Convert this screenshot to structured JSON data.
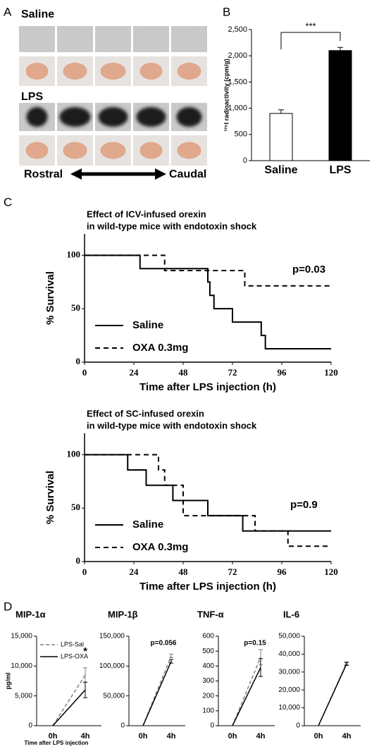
{
  "panel_a": {
    "label": "A",
    "groups": [
      "Saline",
      "LPS"
    ],
    "axis": [
      "Rostral",
      "Caudal"
    ]
  },
  "chart_data": [
    {
      "type": "bar",
      "panel": "B",
      "categories": [
        "Saline",
        "LPS"
      ],
      "values": [
        900,
        2100
      ],
      "errors": [
        70,
        60
      ],
      "colors": [
        "#ffffff",
        "#000000"
      ],
      "ylabel": "¹²⁵I radioactivity (cpm/g)",
      "ylim": [
        0,
        2500
      ],
      "yticks": [
        0,
        500,
        {
          "value": 1000,
          "label": "1,000"
        },
        {
          "value": 1500,
          "label": "1,500"
        },
        {
          "value": 2000,
          "label": "2,000"
        },
        {
          "value": 2500,
          "label": "2,500"
        }
      ],
      "annotation": "***"
    },
    {
      "type": "line",
      "panel": "C",
      "title": "Effect of ICV-infused orexin",
      "subtitle": "in wild-type mice with endotoxin shock",
      "xlabel": "Time after LPS injection (h)",
      "ylabel": "% Survival",
      "xlim": [
        0,
        120
      ],
      "xticks": [
        0,
        24,
        48,
        72,
        96,
        120
      ],
      "ylim": [
        0,
        120
      ],
      "yticks": [
        0,
        50,
        100
      ],
      "legend": "left",
      "annotation": "p=0.03",
      "series": [
        {
          "name": "Saline",
          "color": "#000000",
          "linestyle": "solid",
          "x": [
            0,
            27,
            27,
            60,
            60,
            61,
            61,
            63,
            63,
            72,
            72,
            86,
            86,
            88,
            88,
            120
          ],
          "values": [
            100,
            100,
            87.5,
            87.5,
            75,
            75,
            62.5,
            62.5,
            50,
            50,
            37.5,
            37.5,
            25,
            25,
            12.5,
            12.5
          ]
        },
        {
          "name": "OXA 0.3mg",
          "color": "#000000",
          "linestyle": "dashed",
          "x": [
            0,
            39,
            39,
            78,
            78,
            120
          ],
          "values": [
            100,
            100,
            85.7,
            85.7,
            71.4,
            71.4
          ]
        }
      ]
    },
    {
      "type": "line",
      "title": "Effect of SC-infused orexin",
      "subtitle": "in wild-type mice with endotoxin shock",
      "xlabel": "Time after LPS injection (h)",
      "ylabel": "% Survival",
      "xlim": [
        0,
        120
      ],
      "xticks": [
        0,
        24,
        48,
        72,
        96,
        120
      ],
      "ylim": [
        0,
        120
      ],
      "yticks": [
        0,
        50,
        100
      ],
      "legend": "left",
      "annotation": "p=0.9",
      "series": [
        {
          "name": "Saline",
          "color": "#000000",
          "linestyle": "solid",
          "x": [
            0,
            21,
            21,
            30,
            30,
            43,
            43,
            60,
            60,
            77,
            77,
            120
          ],
          "values": [
            100,
            100,
            85.7,
            85.7,
            71.4,
            71.4,
            57.1,
            57.1,
            42.9,
            42.9,
            28.6,
            28.6
          ]
        },
        {
          "name": "OXA 0.3mg",
          "color": "#000000",
          "linestyle": "dashed",
          "x": [
            0,
            36,
            36,
            39,
            39,
            48,
            48,
            83,
            83,
            99,
            99,
            120
          ],
          "values": [
            100,
            100,
            85.7,
            85.7,
            71.4,
            71.4,
            42.9,
            42.9,
            28.6,
            28.6,
            14.3,
            14.3
          ]
        }
      ]
    },
    {
      "type": "line",
      "panel": "D",
      "title": "MIP-1α",
      "categories": [
        "0h",
        "4h"
      ],
      "xlabel": "Time after LPS injection",
      "ylabel": "pg/ml",
      "ylim": [
        0,
        15000
      ],
      "yticks": [
        0,
        {
          "value": 5000,
          "label": "5,000"
        },
        {
          "value": 10000,
          "label": "10,000"
        },
        {
          "value": 15000,
          "label": "15,000"
        }
      ],
      "legend": "upper-left",
      "annotation": "*",
      "series": [
        {
          "name": "LPS-Sal",
          "color": "#808080",
          "linestyle": "dashed",
          "values": [
            0,
            8500
          ],
          "errors": [
            null,
            1200
          ]
        },
        {
          "name": "LPS-OXA",
          "color": "#000000",
          "linestyle": "solid",
          "values": [
            0,
            6000
          ],
          "errors": [
            null,
            1300
          ]
        }
      ]
    },
    {
      "type": "line",
      "title": "MIP-1β",
      "categories": [
        "0h",
        "4h"
      ],
      "ylim": [
        0,
        150000
      ],
      "yticks": [
        0,
        {
          "value": 50000,
          "label": "50,000"
        },
        {
          "value": 100000,
          "label": "100,000"
        },
        {
          "value": 150000,
          "label": "150,000"
        }
      ],
      "annotation": "p=0.056",
      "series": [
        {
          "color": "#808080",
          "linestyle": "dashed",
          "values": [
            0,
            117000
          ],
          "errors": [
            null,
            3000
          ]
        },
        {
          "color": "#000000",
          "linestyle": "solid",
          "values": [
            0,
            108000
          ],
          "errors": [
            null,
            3000
          ]
        }
      ]
    },
    {
      "type": "line",
      "title": "TNF-α",
      "categories": [
        "0h",
        "4h"
      ],
      "ylim": [
        0,
        600
      ],
      "yticks": [
        0,
        100,
        200,
        300,
        400,
        500,
        600
      ],
      "annotation": "p=0.15",
      "series": [
        {
          "color": "#808080",
          "linestyle": "dashed",
          "values": [
            0,
            460
          ],
          "errors": [
            null,
            50
          ]
        },
        {
          "color": "#000000",
          "linestyle": "solid",
          "values": [
            0,
            390
          ],
          "errors": [
            null,
            60
          ]
        }
      ]
    },
    {
      "type": "line",
      "title": "IL-6",
      "categories": [
        "0h",
        "4h"
      ],
      "ylim": [
        0,
        50000
      ],
      "yticks": [
        0,
        {
          "value": 10000,
          "label": "10,000"
        },
        {
          "value": 20000,
          "label": "20,000"
        },
        {
          "value": 30000,
          "label": "30,000"
        },
        {
          "value": 40000,
          "label": "40,000"
        },
        {
          "value": 50000,
          "label": "50,000"
        }
      ],
      "series": [
        {
          "color": "#808080",
          "linestyle": "dashed",
          "values": [
            0,
            35000
          ],
          "errors": [
            null,
            800
          ]
        },
        {
          "color": "#000000",
          "linestyle": "solid",
          "values": [
            0,
            34500
          ],
          "errors": [
            null,
            800
          ]
        }
      ]
    }
  ]
}
